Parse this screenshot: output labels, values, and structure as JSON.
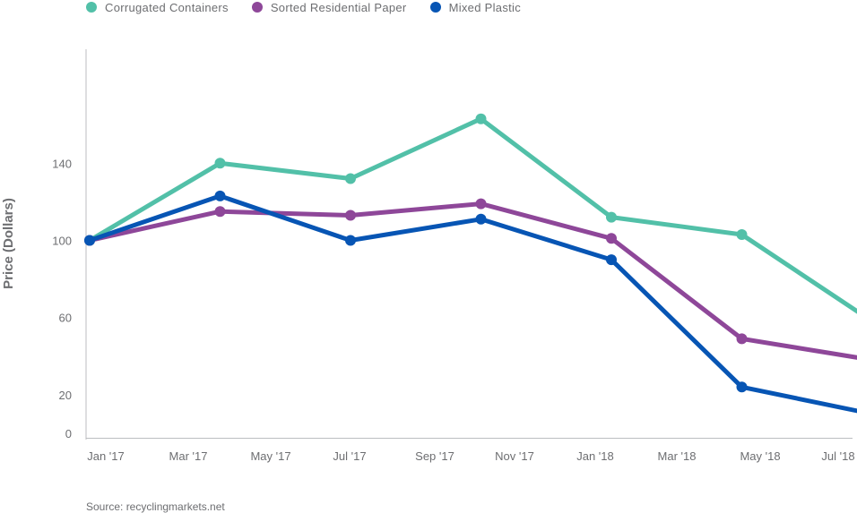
{
  "chart_data": {
    "type": "line",
    "title": "",
    "xlabel": "",
    "ylabel": "Price (Dollars)",
    "ylim": [
      0,
      160
    ],
    "yticks": [
      0,
      20,
      60,
      100,
      140
    ],
    "x_ticks": [
      "Jan '17",
      "Mar '17",
      "May '17",
      "Jul '17",
      "Sep '17",
      "Nov '17",
      "Jan '18",
      "Mar '18",
      "May '18",
      "Jul '18"
    ],
    "grid": false,
    "legend_position": "top-left",
    "series": [
      {
        "name": "Corrugated Containers",
        "color": "#52c0a8",
        "points": [
          {
            "x": "2017-01",
            "y": 100
          },
          {
            "x": "2017-04",
            "y": 140
          },
          {
            "x": "2017-07",
            "y": 132
          },
          {
            "x": "2017-10",
            "y": 163
          },
          {
            "x": "2018-01",
            "y": 112
          },
          {
            "x": "2018-04",
            "y": 103
          },
          {
            "x": "2018-07",
            "y": 58
          }
        ]
      },
      {
        "name": "Sorted Residential Paper",
        "color": "#8e4799",
        "points": [
          {
            "x": "2017-01",
            "y": 100
          },
          {
            "x": "2017-04",
            "y": 115
          },
          {
            "x": "2017-07",
            "y": 113
          },
          {
            "x": "2017-10",
            "y": 119
          },
          {
            "x": "2018-01",
            "y": 101
          },
          {
            "x": "2018-04",
            "y": 49
          },
          {
            "x": "2018-07",
            "y": 38
          }
        ]
      },
      {
        "name": "Mixed Plastic",
        "color": "#0755b4",
        "points": [
          {
            "x": "2017-01",
            "y": 100
          },
          {
            "x": "2017-04",
            "y": 123
          },
          {
            "x": "2017-07",
            "y": 100
          },
          {
            "x": "2017-10",
            "y": 111
          },
          {
            "x": "2018-01",
            "y": 90
          },
          {
            "x": "2018-04",
            "y": 24
          },
          {
            "x": "2018-07",
            "y": 10
          }
        ]
      }
    ]
  },
  "source": "Source: recyclingmarkets.net"
}
